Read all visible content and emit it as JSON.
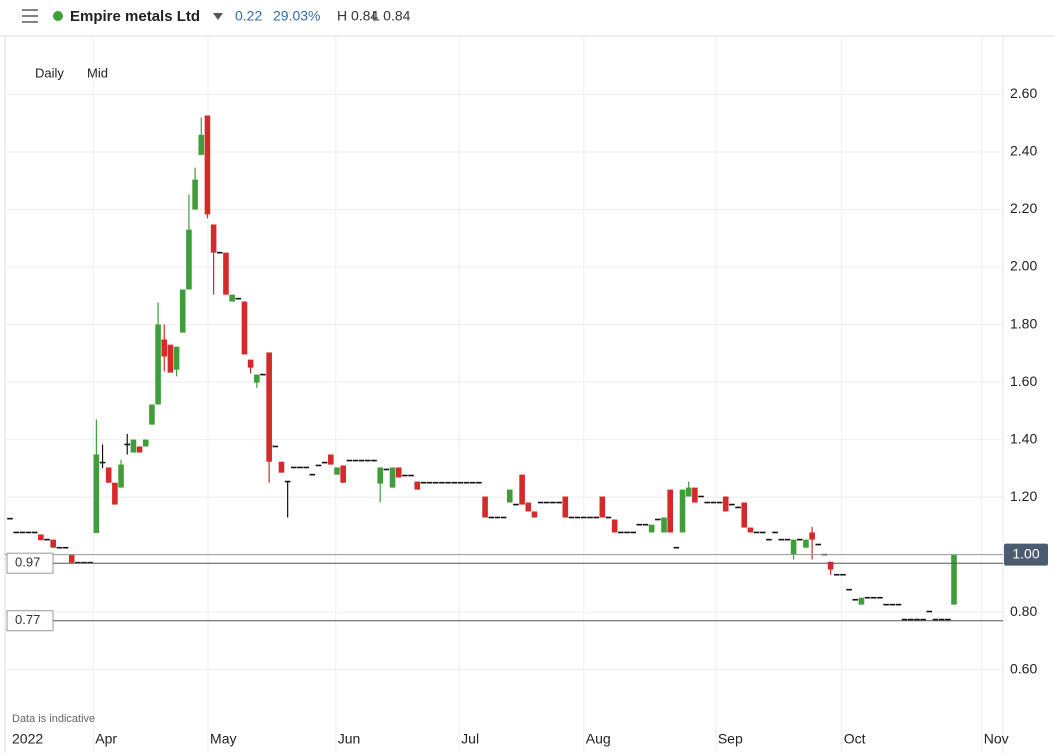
{
  "header": {
    "name": "Empire metals Ltd",
    "change": "0.22",
    "change_pct": "29.03%",
    "high": "H 0.84",
    "low": "L 0.84"
  },
  "chart_data": {
    "type": "candlestick",
    "interval": "Daily",
    "price_type": "Mid",
    "note": "Data is indicative",
    "up_color": "#3f9e3a",
    "down_color": "#d42a2a",
    "flat_color": "#111111",
    "ylim": [
      0.39,
      2.8
    ],
    "yticks": [
      {
        "value": 0.6,
        "label": "0.60"
      },
      {
        "value": 0.8,
        "label": "0.80"
      },
      {
        "value": 1.0,
        "label": "1.00"
      },
      {
        "value": 1.2,
        "label": "1.20"
      },
      {
        "value": 1.4,
        "label": "1.40"
      },
      {
        "value": 1.6,
        "label": "1.60"
      },
      {
        "value": 1.8,
        "label": "1.80"
      },
      {
        "value": 2.0,
        "label": "2.00"
      },
      {
        "value": 2.2,
        "label": "2.20"
      },
      {
        "value": 2.4,
        "label": "2.40"
      },
      {
        "value": 2.6,
        "label": "2.60"
      }
    ],
    "xticks": [
      {
        "value": 0,
        "label": "2022"
      },
      {
        "value": 13.5,
        "label": "Apr"
      },
      {
        "value": 32.1,
        "label": "May"
      },
      {
        "value": 52.8,
        "label": "Jun"
      },
      {
        "value": 72.8,
        "label": "Jul"
      },
      {
        "value": 93,
        "label": "Aug"
      },
      {
        "value": 114.4,
        "label": "Sep"
      },
      {
        "value": 134.8,
        "label": "Oct"
      },
      {
        "value": 157.5,
        "label": "Nov"
      }
    ],
    "last_price": {
      "value": 1.0,
      "label": "1.00"
    },
    "price_lines": [
      {
        "value": 0.97,
        "label": "0.97"
      },
      {
        "value": 0.77,
        "label": "0.77"
      }
    ],
    "ohlc": [
      [
        1.125,
        1.125,
        1.125,
        1.125
      ],
      [
        1.077,
        1.077,
        1.077,
        1.077
      ],
      [
        1.077,
        1.077,
        1.077,
        1.077
      ],
      [
        1.077,
        1.077,
        1.077,
        1.077
      ],
      [
        1.077,
        1.077,
        1.077,
        1.077
      ],
      [
        1.07,
        1.07,
        1.05,
        1.05
      ],
      [
        1.052,
        1.052,
        1.052,
        1.052
      ],
      [
        1.052,
        1.052,
        1.024,
        1.024
      ],
      [
        1.024,
        1.024,
        1.024,
        1.024
      ],
      [
        1.024,
        1.024,
        1.024,
        1.024
      ],
      [
        1.0,
        1.0,
        0.972,
        0.972
      ],
      [
        0.972,
        0.972,
        0.972,
        0.972
      ],
      [
        0.972,
        0.972,
        0.972,
        0.972
      ],
      [
        0.972,
        0.972,
        0.972,
        0.972
      ],
      [
        1.075,
        1.47,
        1.075,
        1.348
      ],
      [
        1.32,
        1.383,
        1.3,
        1.32
      ],
      [
        1.303,
        1.303,
        1.25,
        1.25
      ],
      [
        1.25,
        1.25,
        1.174,
        1.174
      ],
      [
        1.233,
        1.33,
        1.233,
        1.313
      ],
      [
        1.383,
        1.42,
        1.348,
        1.383
      ],
      [
        1.355,
        1.4,
        1.355,
        1.4
      ],
      [
        1.376,
        1.376,
        1.355,
        1.355
      ],
      [
        1.376,
        1.4,
        1.376,
        1.4
      ],
      [
        1.452,
        1.522,
        1.452,
        1.522
      ],
      [
        1.522,
        1.877,
        1.522,
        1.8
      ],
      [
        1.748,
        1.8,
        1.637,
        1.689
      ],
      [
        1.73,
        1.73,
        1.633,
        1.633
      ],
      [
        1.643,
        1.723,
        1.62,
        1.723
      ],
      [
        1.772,
        1.922,
        1.772,
        1.922
      ],
      [
        1.922,
        2.252,
        1.922,
        2.13
      ],
      [
        2.2,
        2.346,
        2.2,
        2.304
      ],
      [
        2.39,
        2.52,
        2.39,
        2.46
      ],
      [
        2.527,
        2.527,
        2.17,
        2.183
      ],
      [
        2.148,
        2.148,
        1.904,
        2.05
      ],
      [
        2.05,
        2.05,
        2.05,
        2.05
      ],
      [
        2.05,
        2.05,
        1.904,
        1.904
      ],
      [
        1.88,
        1.904,
        1.88,
        1.904
      ],
      [
        1.89,
        1.89,
        1.89,
        1.89
      ],
      [
        1.88,
        1.88,
        1.696,
        1.696
      ],
      [
        1.678,
        1.678,
        1.63,
        1.65
      ],
      [
        1.598,
        1.626,
        1.58,
        1.626
      ],
      [
        1.626,
        1.626,
        1.626,
        1.626
      ],
      [
        1.703,
        1.703,
        1.25,
        1.323
      ],
      [
        1.376,
        1.376,
        1.376,
        1.376
      ],
      [
        1.323,
        1.323,
        1.285,
        1.285
      ],
      [
        1.254,
        1.254,
        1.129,
        1.254
      ],
      [
        1.303,
        1.303,
        1.303,
        1.303
      ],
      [
        1.303,
        1.303,
        1.303,
        1.303
      ],
      [
        1.303,
        1.303,
        1.303,
        1.303
      ],
      [
        1.278,
        1.278,
        1.278,
        1.278
      ],
      [
        1.31,
        1.31,
        1.31,
        1.31
      ],
      [
        1.32,
        1.32,
        1.32,
        1.32
      ],
      [
        1.348,
        1.348,
        1.313,
        1.313
      ],
      [
        1.278,
        1.303,
        1.278,
        1.303
      ],
      [
        1.31,
        1.31,
        1.25,
        1.25
      ],
      [
        1.327,
        1.327,
        1.327,
        1.327
      ],
      [
        1.327,
        1.327,
        1.327,
        1.327
      ],
      [
        1.327,
        1.327,
        1.327,
        1.327
      ],
      [
        1.327,
        1.327,
        1.327,
        1.327
      ],
      [
        1.327,
        1.327,
        1.327,
        1.327
      ],
      [
        1.247,
        1.303,
        1.181,
        1.303
      ],
      [
        1.296,
        1.296,
        1.296,
        1.296
      ],
      [
        1.233,
        1.303,
        1.233,
        1.303
      ],
      [
        1.303,
        1.303,
        1.268,
        1.268
      ],
      [
        1.275,
        1.275,
        1.275,
        1.275
      ],
      [
        1.275,
        1.275,
        1.275,
        1.275
      ],
      [
        1.254,
        1.254,
        1.226,
        1.226
      ],
      [
        1.25,
        1.25,
        1.25,
        1.25
      ],
      [
        1.25,
        1.25,
        1.25,
        1.25
      ],
      [
        1.25,
        1.25,
        1.25,
        1.25
      ],
      [
        1.25,
        1.25,
        1.25,
        1.25
      ],
      [
        1.25,
        1.25,
        1.25,
        1.25
      ],
      [
        1.25,
        1.25,
        1.25,
        1.25
      ],
      [
        1.25,
        1.25,
        1.25,
        1.25
      ],
      [
        1.25,
        1.25,
        1.25,
        1.25
      ],
      [
        1.25,
        1.25,
        1.25,
        1.25
      ],
      [
        1.25,
        1.25,
        1.25,
        1.25
      ],
      [
        1.202,
        1.202,
        1.129,
        1.129
      ],
      [
        1.129,
        1.129,
        1.129,
        1.129
      ],
      [
        1.129,
        1.129,
        1.129,
        1.129
      ],
      [
        1.129,
        1.129,
        1.129,
        1.129
      ],
      [
        1.181,
        1.226,
        1.181,
        1.226
      ],
      [
        1.174,
        1.174,
        1.174,
        1.174
      ],
      [
        1.278,
        1.278,
        1.174,
        1.174
      ],
      [
        1.181,
        1.181,
        1.15,
        1.15
      ],
      [
        1.15,
        1.15,
        1.129,
        1.129
      ],
      [
        1.181,
        1.181,
        1.181,
        1.181
      ],
      [
        1.181,
        1.181,
        1.181,
        1.181
      ],
      [
        1.181,
        1.181,
        1.181,
        1.181
      ],
      [
        1.181,
        1.181,
        1.181,
        1.181
      ],
      [
        1.202,
        1.202,
        1.129,
        1.129
      ],
      [
        1.129,
        1.129,
        1.129,
        1.129
      ],
      [
        1.129,
        1.129,
        1.129,
        1.129
      ],
      [
        1.129,
        1.129,
        1.129,
        1.129
      ],
      [
        1.129,
        1.129,
        1.129,
        1.129
      ],
      [
        1.129,
        1.129,
        1.129,
        1.129
      ],
      [
        1.202,
        1.202,
        1.129,
        1.129
      ],
      [
        1.129,
        1.129,
        1.129,
        1.129
      ],
      [
        1.122,
        1.122,
        1.077,
        1.077
      ],
      [
        1.077,
        1.077,
        1.077,
        1.077
      ],
      [
        1.077,
        1.077,
        1.077,
        1.077
      ],
      [
        1.077,
        1.077,
        1.077,
        1.077
      ],
      [
        1.104,
        1.104,
        1.104,
        1.104
      ],
      [
        1.104,
        1.104,
        1.104,
        1.104
      ],
      [
        1.077,
        1.104,
        1.077,
        1.104
      ],
      [
        1.122,
        1.122,
        1.122,
        1.122
      ],
      [
        1.077,
        1.129,
        1.077,
        1.129
      ],
      [
        1.226,
        1.226,
        1.077,
        1.077
      ],
      [
        1.024,
        1.024,
        1.024,
        1.024
      ],
      [
        1.077,
        1.226,
        1.077,
        1.226
      ],
      [
        1.202,
        1.254,
        1.202,
        1.233
      ],
      [
        1.233,
        1.233,
        1.181,
        1.181
      ],
      [
        1.202,
        1.202,
        1.202,
        1.202
      ],
      [
        1.181,
        1.181,
        1.181,
        1.181
      ],
      [
        1.181,
        1.181,
        1.181,
        1.181
      ],
      [
        1.181,
        1.181,
        1.181,
        1.181
      ],
      [
        1.202,
        1.202,
        1.15,
        1.15
      ],
      [
        1.174,
        1.174,
        1.174,
        1.174
      ],
      [
        1.164,
        1.164,
        1.164,
        1.164
      ],
      [
        1.181,
        1.181,
        1.094,
        1.094
      ],
      [
        1.094,
        1.094,
        1.077,
        1.077
      ],
      [
        1.077,
        1.077,
        1.077,
        1.077
      ],
      [
        1.077,
        1.077,
        1.077,
        1.077
      ],
      [
        1.052,
        1.052,
        1.052,
        1.052
      ],
      [
        1.077,
        1.077,
        1.077,
        1.077
      ],
      [
        1.052,
        1.052,
        1.052,
        1.052
      ],
      [
        1.052,
        1.052,
        1.052,
        1.052
      ],
      [
        1.0,
        1.052,
        0.983,
        1.052
      ],
      [
        1.052,
        1.052,
        1.052,
        1.052
      ],
      [
        1.024,
        1.052,
        1.024,
        1.052
      ],
      [
        1.077,
        1.097,
        0.983,
        1.052
      ],
      [
        1.035,
        1.035,
        1.035,
        1.035
      ],
      [
        1.0,
        1.0,
        1.0,
        1.0
      ],
      [
        0.975,
        0.975,
        0.93,
        0.948
      ],
      [
        0.93,
        0.93,
        0.93,
        0.93
      ],
      [
        0.93,
        0.93,
        0.93,
        0.93
      ],
      [
        0.878,
        0.878,
        0.878,
        0.878
      ],
      [
        0.843,
        0.843,
        0.843,
        0.843
      ],
      [
        0.826,
        0.85,
        0.826,
        0.85
      ],
      [
        0.85,
        0.85,
        0.85,
        0.85
      ],
      [
        0.85,
        0.85,
        0.85,
        0.85
      ],
      [
        0.85,
        0.85,
        0.85,
        0.85
      ],
      [
        0.826,
        0.826,
        0.826,
        0.826
      ],
      [
        0.826,
        0.826,
        0.826,
        0.826
      ],
      [
        0.826,
        0.826,
        0.826,
        0.826
      ],
      [
        0.774,
        0.774,
        0.774,
        0.774
      ],
      [
        0.774,
        0.774,
        0.774,
        0.774
      ],
      [
        0.774,
        0.774,
        0.774,
        0.774
      ],
      [
        0.774,
        0.774,
        0.774,
        0.774
      ],
      [
        0.802,
        0.802,
        0.802,
        0.802
      ],
      [
        0.774,
        0.774,
        0.774,
        0.774
      ],
      [
        0.774,
        0.774,
        0.774,
        0.774
      ],
      [
        0.774,
        0.774,
        0.774,
        0.774
      ],
      [
        0.826,
        1.0,
        0.826,
        1.0
      ]
    ]
  }
}
